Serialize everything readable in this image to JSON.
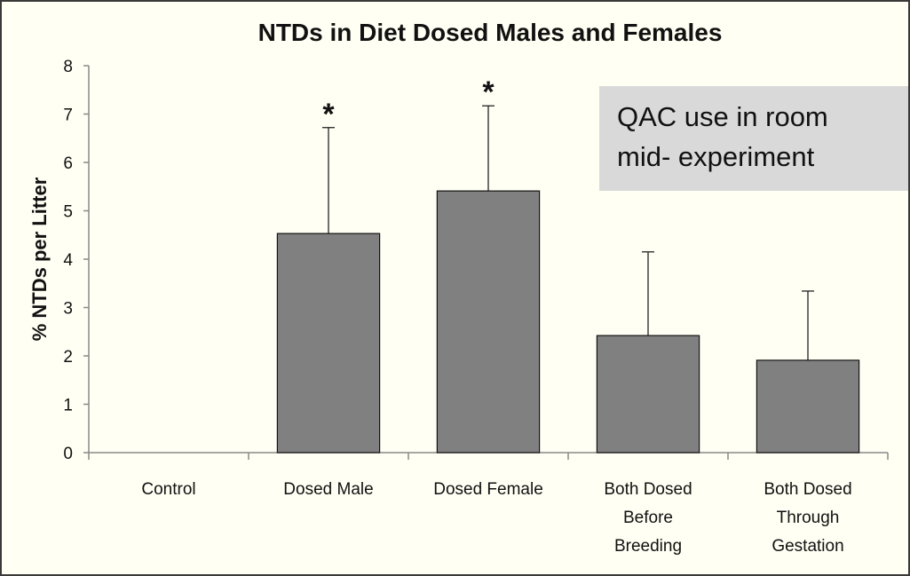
{
  "chart_data": {
    "type": "bar",
    "title": "NTDs in Diet Dosed Males and Females",
    "y_label": "% NTDs per Litter",
    "categories": [
      "Control",
      "Dosed Male",
      "Dosed Female",
      "Both Dosed\nBefore\nBreeding",
      "Both Dosed\nThrough\nGestation"
    ],
    "values": [
      0,
      4.53,
      5.41,
      2.42,
      1.91
    ],
    "errors": [
      0,
      2.19,
      1.76,
      1.73,
      1.43
    ],
    "significance": [
      null,
      "*",
      "*",
      null,
      null
    ],
    "color": "#808080",
    "ylim": [
      0,
      8
    ],
    "yticks": [
      0,
      1,
      2,
      3,
      4,
      5,
      6,
      7,
      8
    ],
    "grid": false,
    "annotation": [
      "QAC use in room",
      "mid- experiment"
    ]
  }
}
